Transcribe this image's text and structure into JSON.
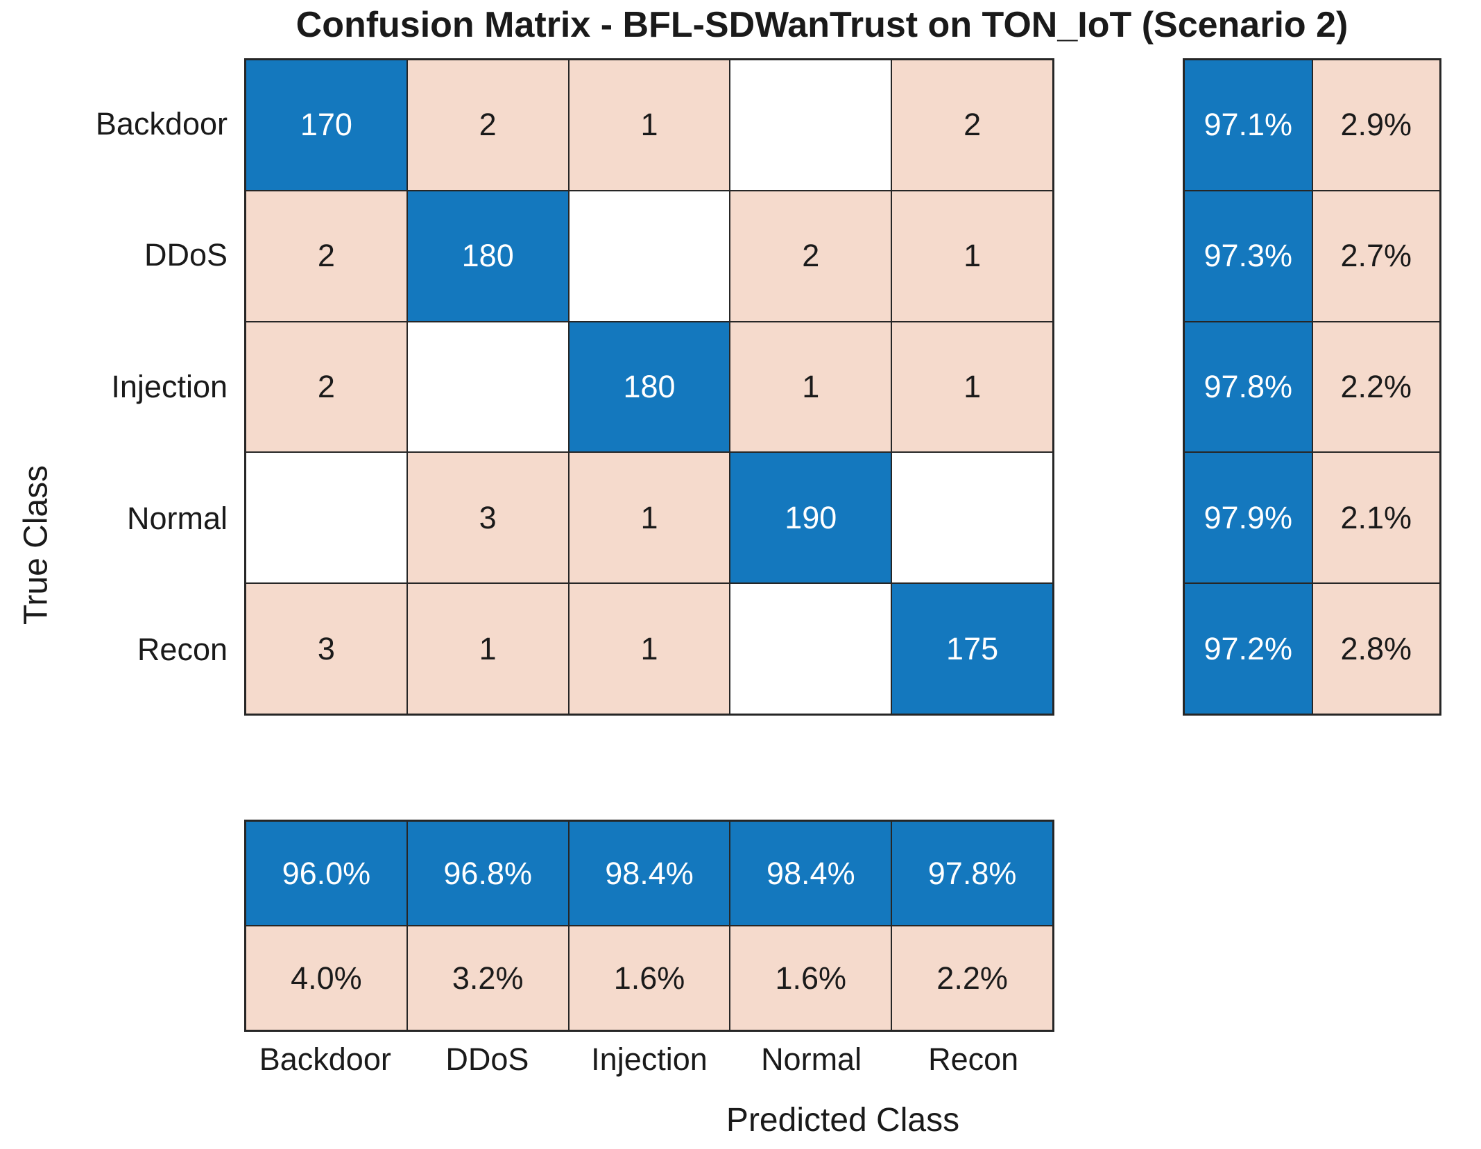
{
  "chart_data": {
    "type": "heatmap",
    "subtype": "confusion-matrix",
    "title": "Confusion Matrix - BFL-SDWanTrust on TON_IoT (Scenario 2)",
    "xlabel": "Predicted Class",
    "ylabel": "True Class",
    "classes": [
      "Backdoor",
      "DDoS",
      "Injection",
      "Normal",
      "Recon"
    ],
    "matrix": [
      [
        170,
        2,
        1,
        null,
        2
      ],
      [
        2,
        180,
        null,
        2,
        1
      ],
      [
        2,
        null,
        180,
        1,
        1
      ],
      [
        null,
        3,
        1,
        190,
        null
      ],
      [
        3,
        1,
        1,
        null,
        175
      ]
    ],
    "row_summary": {
      "positive": [
        "97.1%",
        "97.3%",
        "97.8%",
        "97.9%",
        "97.2%"
      ],
      "negative": [
        "2.9%",
        "2.7%",
        "2.2%",
        "2.1%",
        "2.8%"
      ]
    },
    "col_summary": {
      "positive": [
        "96.0%",
        "96.8%",
        "98.4%",
        "98.4%",
        "97.8%"
      ],
      "negative": [
        "4.0%",
        "3.2%",
        "1.6%",
        "1.6%",
        "2.2%"
      ]
    },
    "colors": {
      "diagonal": "#1478BE",
      "off_diagonal": "#F5DACC",
      "empty": "#FFFFFF",
      "border": "#262626",
      "text_dark": "#1A1A1A",
      "text_on_blue": "#FFFFFF"
    },
    "layout": {
      "legend": false,
      "grid": true,
      "row_summary_position": "right",
      "col_summary_position": "bottom"
    }
  }
}
